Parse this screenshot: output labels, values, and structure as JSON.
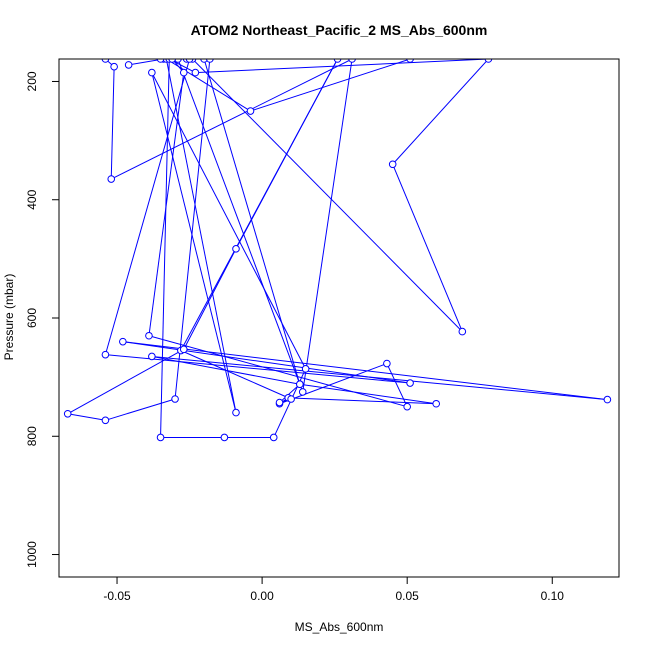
{
  "chart_data": {
    "type": "line",
    "title": "ATOM2 Northeast_Pacific_2 MS_Abs_600nm",
    "xlabel": "MS_Abs_600nm",
    "ylabel": "Pressure (mbar)",
    "xlim": [
      -0.07,
      0.123
    ],
    "ylim": [
      1038,
      162
    ],
    "y_reversed": true,
    "x_ticks": [
      -0.05,
      0.0,
      0.05,
      0.1
    ],
    "x_tick_labels": [
      "-0.05",
      "0.00",
      "0.05",
      "0.10"
    ],
    "y_ticks": [
      200,
      400,
      600,
      800,
      1000
    ],
    "y_tick_labels": [
      "200",
      "400",
      "600",
      "800",
      "1000"
    ],
    "grid": false,
    "marker": "open-circle",
    "series": [
      {
        "color": "#0000ff",
        "x": [
          -0.046,
          -0.034,
          -0.026,
          0.051,
          -0.004,
          -0.033,
          -0.009,
          -0.038,
          0.015,
          0.004,
          -0.013,
          -0.035,
          -0.032,
          -0.023,
          0.078,
          0.045,
          0.069,
          -0.024,
          -0.054,
          -0.051,
          -0.052,
          0.031,
          0.014,
          -0.029,
          -0.035,
          -0.031,
          -0.027,
          -0.039,
          0.05,
          0.043,
          0.006,
          0.009,
          0.06,
          0.013,
          -0.02,
          -0.025,
          -0.054,
          0.051,
          -0.048,
          0.119,
          -0.038,
          0.013,
          0.006,
          0.01,
          -0.028,
          0.026,
          -0.009,
          -0.027,
          -0.067,
          -0.054,
          -0.03,
          -0.018
        ],
        "y": [
          172,
          162,
          162,
          162,
          250,
          162,
          760,
          185,
          686,
          802,
          802,
          802,
          162,
          185,
          162,
          340,
          623,
          162,
          162,
          175,
          365,
          162,
          725,
          162,
          162,
          162,
          185,
          630,
          750,
          677,
          745,
          735,
          745,
          712,
          162,
          162,
          662,
          710,
          640,
          738,
          665,
          712,
          743,
          737,
          655,
          162,
          483,
          653,
          762,
          773,
          737,
          162
        ]
      }
    ]
  }
}
